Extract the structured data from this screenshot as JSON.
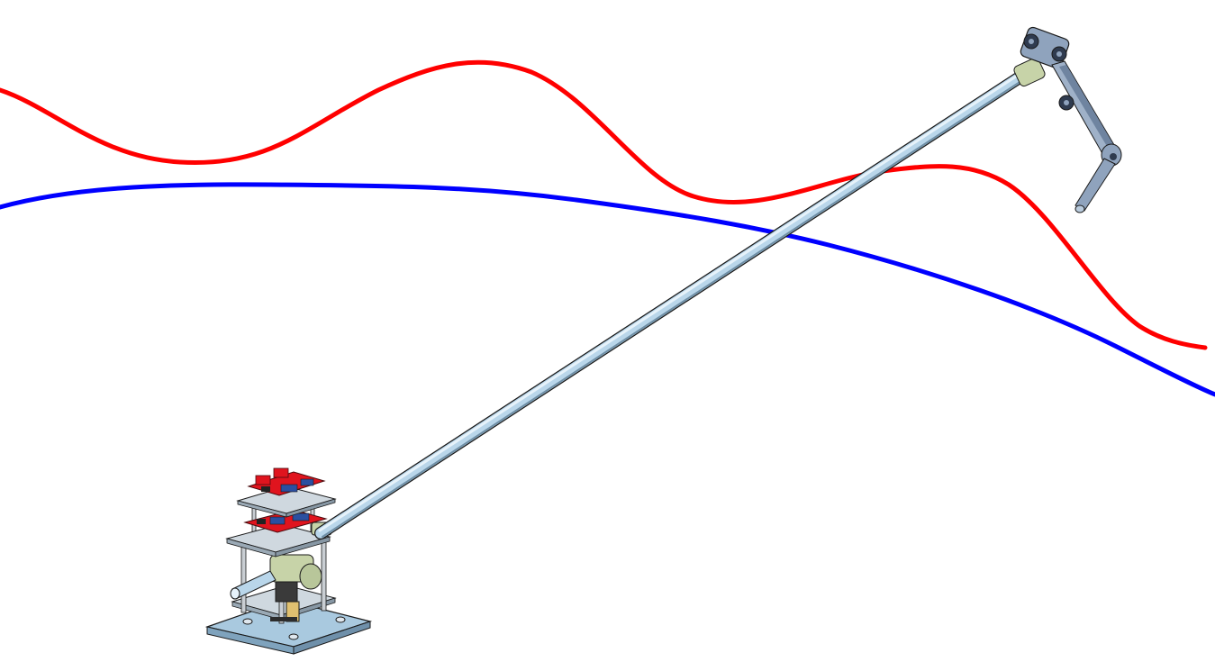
{
  "scene": {
    "description_free": true,
    "trajectories": [
      {
        "id": "trajectory-red",
        "color": "#ff0000"
      },
      {
        "id": "trajectory-blue",
        "color": "#0000ff"
      }
    ],
    "colors": {
      "background": "#ffffff",
      "rod_fill": "#b9d6ea",
      "rod_highlight": "#e6f2fa",
      "rod_shadow": "#6f8fa6",
      "outline": "#1a1a1a",
      "base_plate": "#a9c9df",
      "frame_plate": "#cfd8df",
      "pcb_red": "#e0141e",
      "pcb_dark": "#4a0b0e",
      "motor_green": "#c7d3a8",
      "servo_blue": "#8fa3bd",
      "servo_dark": "#2f3b4f"
    }
  }
}
